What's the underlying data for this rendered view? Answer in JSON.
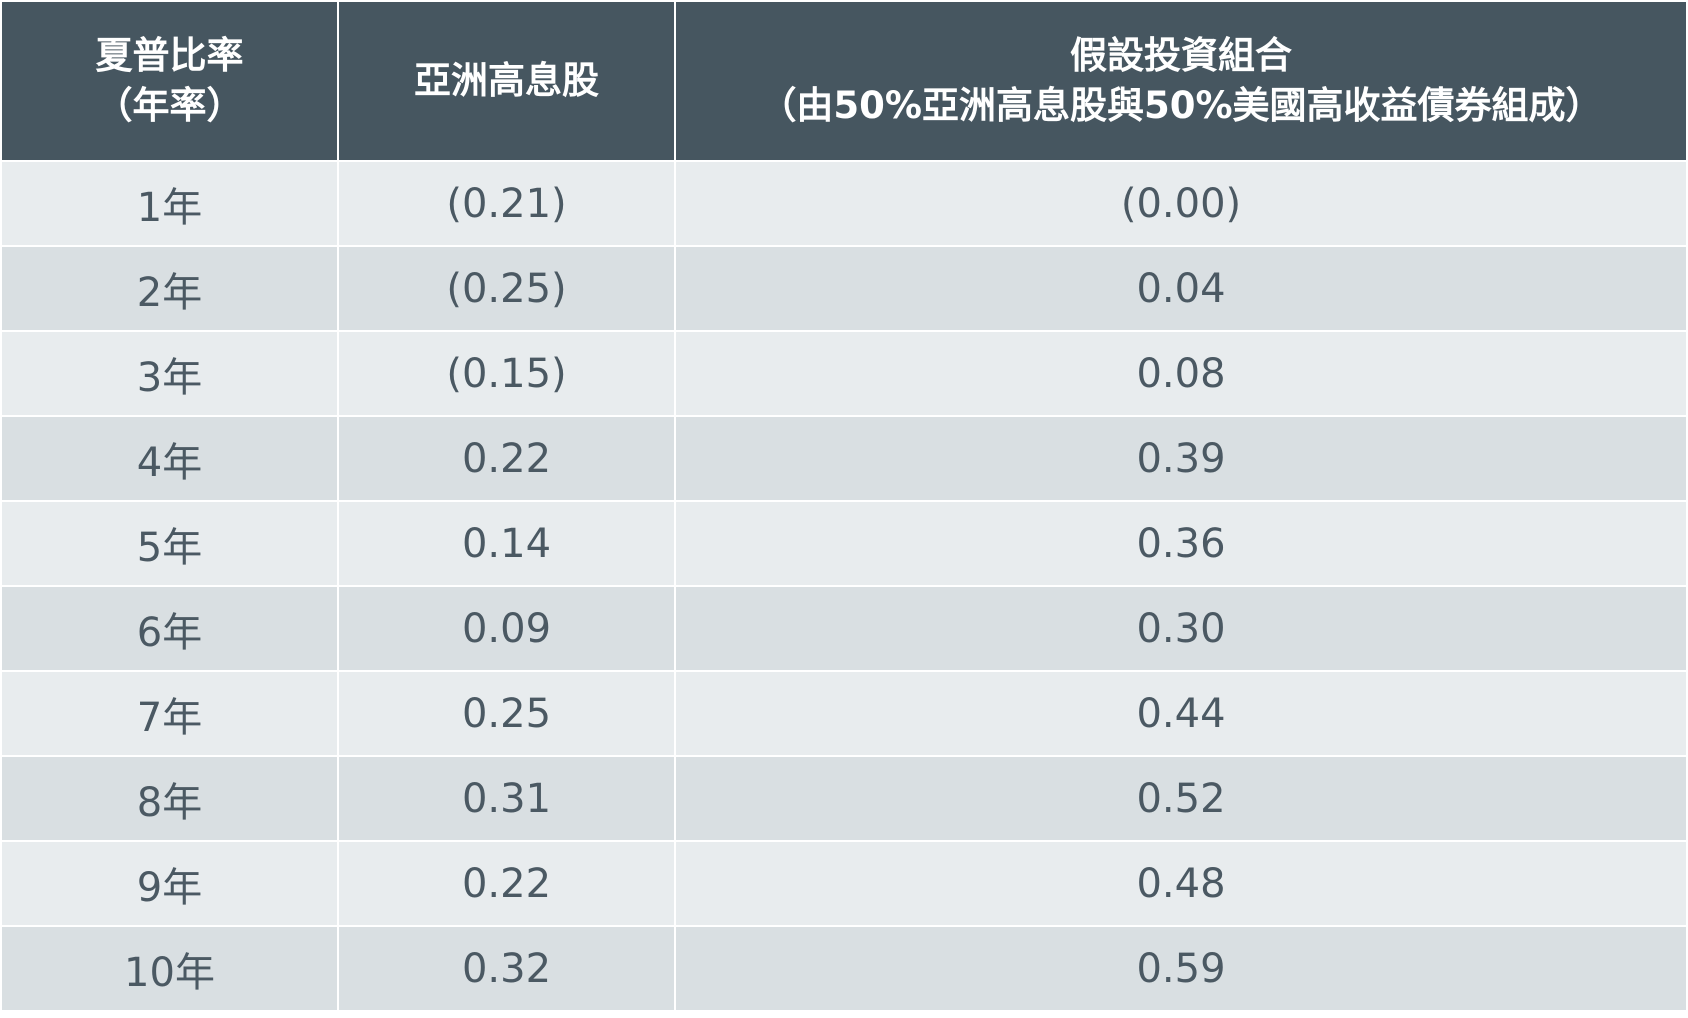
{
  "table": {
    "headers": {
      "period": [
        "夏普比率",
        "（年率）"
      ],
      "asia_high_dividend": "亞洲高息股",
      "portfolio": [
        "假設投資組合",
        "（由50%亞洲高息股與50%美國高收益債券組成）"
      ]
    },
    "rows": [
      {
        "period": "1年",
        "asia_high_dividend": "(0.21)",
        "portfolio": "(0.00)"
      },
      {
        "period": "2年",
        "asia_high_dividend": "(0.25)",
        "portfolio": "0.04"
      },
      {
        "period": "3年",
        "asia_high_dividend": "(0.15)",
        "portfolio": "0.08"
      },
      {
        "period": "4年",
        "asia_high_dividend": "0.22",
        "portfolio": "0.39"
      },
      {
        "period": "5年",
        "asia_high_dividend": "0.14",
        "portfolio": "0.36"
      },
      {
        "period": "6年",
        "asia_high_dividend": "0.09",
        "portfolio": "0.30"
      },
      {
        "period": "7年",
        "asia_high_dividend": "0.25",
        "portfolio": "0.44"
      },
      {
        "period": "8年",
        "asia_high_dividend": "0.31",
        "portfolio": "0.52"
      },
      {
        "period": "9年",
        "asia_high_dividend": "0.22",
        "portfolio": "0.48"
      },
      {
        "period": "10年",
        "asia_high_dividend": "0.32",
        "portfolio": "0.59"
      }
    ],
    "colors": {
      "header_bg": "#465660",
      "header_text": "#ffffff",
      "row_odd_bg": "#e8ecee",
      "row_even_bg": "#d9dfe2",
      "cell_text": "#4b5963"
    }
  }
}
